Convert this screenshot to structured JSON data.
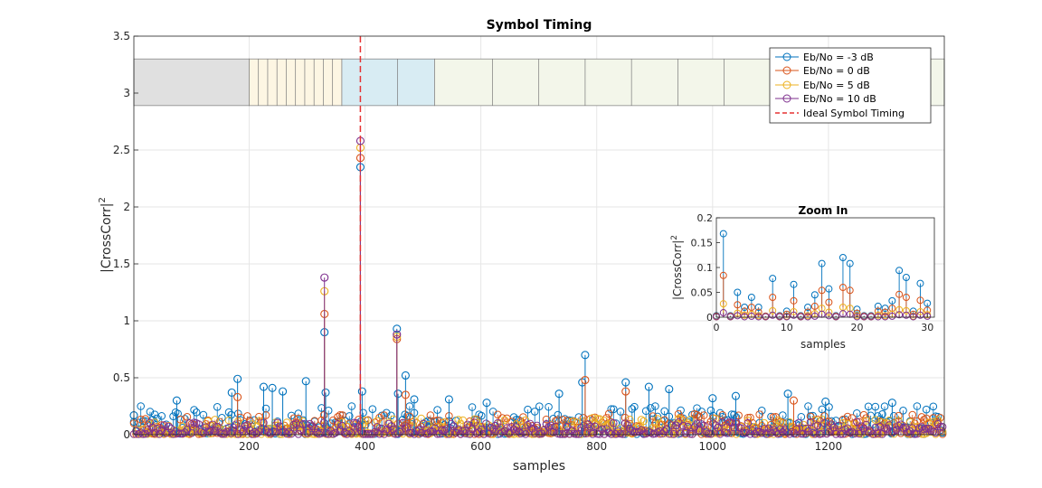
{
  "chart_data": [
    {
      "type": "stem",
      "title": "Symbol Timing",
      "xlabel": "samples",
      "ylabel": "|CrossCorr|",
      "ylabel_superscript": "2",
      "xlim": [
        1,
        1400
      ],
      "ylim": [
        0,
        3.5
      ],
      "xticks": [
        200,
        400,
        600,
        800,
        1000,
        1200
      ],
      "yticks": [
        0,
        0.5,
        1,
        1.5,
        2,
        2.5,
        3,
        3.5
      ],
      "ytick_labels": [
        "0",
        "0.5",
        "1",
        "1.5",
        "2",
        "2.5",
        "3",
        "3.5"
      ],
      "grid": true,
      "legend_position": "top-right",
      "colors": {
        "eb_m3": "#0072BD",
        "eb_0": "#D95319",
        "eb_5": "#EDB120",
        "eb_10": "#7E2F8E",
        "ideal": "#E63232"
      },
      "series": [
        {
          "name": "Eb/No = -3 dB",
          "peaks": [
            {
              "x": 1,
              "y": 0.17
            },
            {
              "x": 75,
              "y": 0.3
            },
            {
              "x": 170,
              "y": 0.37
            },
            {
              "x": 180,
              "y": 0.49
            },
            {
              "x": 225,
              "y": 0.42
            },
            {
              "x": 240,
              "y": 0.41
            },
            {
              "x": 258,
              "y": 0.38
            },
            {
              "x": 298,
              "y": 0.47
            },
            {
              "x": 330,
              "y": 0.9
            },
            {
              "x": 332,
              "y": 0.37
            },
            {
              "x": 392,
              "y": 2.35
            },
            {
              "x": 395,
              "y": 0.38
            },
            {
              "x": 455,
              "y": 0.93
            },
            {
              "x": 457,
              "y": 0.36
            },
            {
              "x": 470,
              "y": 0.52
            },
            {
              "x": 485,
              "y": 0.31
            },
            {
              "x": 545,
              "y": 0.31
            },
            {
              "x": 610,
              "y": 0.28
            },
            {
              "x": 735,
              "y": 0.36
            },
            {
              "x": 780,
              "y": 0.7
            },
            {
              "x": 775,
              "y": 0.46
            },
            {
              "x": 850,
              "y": 0.46
            },
            {
              "x": 890,
              "y": 0.42
            },
            {
              "x": 925,
              "y": 0.4
            },
            {
              "x": 1000,
              "y": 0.32
            },
            {
              "x": 1040,
              "y": 0.34
            },
            {
              "x": 1130,
              "y": 0.36
            },
            {
              "x": 1195,
              "y": 0.29
            },
            {
              "x": 1310,
              "y": 0.28
            }
          ]
        },
        {
          "name": "Eb/No = 0 dB",
          "peaks": [
            {
              "x": 330,
              "y": 1.06
            },
            {
              "x": 392,
              "y": 2.43
            },
            {
              "x": 455,
              "y": 0.84
            },
            {
              "x": 470,
              "y": 0.35
            },
            {
              "x": 180,
              "y": 0.33
            },
            {
              "x": 780,
              "y": 0.48
            },
            {
              "x": 850,
              "y": 0.38
            },
            {
              "x": 1140,
              "y": 0.3
            }
          ]
        },
        {
          "name": "Eb/No = 5 dB",
          "peaks": [
            {
              "x": 330,
              "y": 1.26
            },
            {
              "x": 392,
              "y": 2.52
            },
            {
              "x": 455,
              "y": 0.86
            }
          ]
        },
        {
          "name": "Eb/No = 10 dB",
          "peaks": [
            {
              "x": 330,
              "y": 1.38
            },
            {
              "x": 392,
              "y": 2.58
            },
            {
              "x": 455,
              "y": 0.88
            }
          ]
        }
      ],
      "ideal_symbol_timing": {
        "name": "Ideal Symbol Timing",
        "x": 392
      },
      "frame_segments": [
        {
          "x0": 1,
          "x1": 200,
          "color": "#e0e0e0",
          "dividers": []
        },
        {
          "x0": 200,
          "x1": 360,
          "color": "#fdf6e3",
          "dividers": [
            216,
            232,
            248,
            264,
            280,
            296,
            312,
            328,
            344
          ]
        },
        {
          "x0": 360,
          "x1": 520,
          "color": "#d8ecf3",
          "dividers": [
            456
          ]
        },
        {
          "x0": 520,
          "x1": 1400,
          "color": "#f3f6ea",
          "dividers": [
            620,
            700,
            780,
            860,
            940,
            1020,
            1100,
            1180,
            1260,
            1340
          ]
        }
      ],
      "frame_band": {
        "y0": 2.89,
        "y1": 3.3
      }
    },
    {
      "type": "stem",
      "title": "Zoom In",
      "xlabel": "samples",
      "ylabel": "|CrossCorr|",
      "ylabel_superscript": "2",
      "xlim": [
        0,
        31
      ],
      "ylim": [
        0,
        0.2
      ],
      "xticks": [
        0,
        10,
        20,
        30
      ],
      "yticks": [
        0,
        0.05,
        0.1,
        0.15,
        0.2
      ],
      "ytick_labels": [
        "0",
        "0.05",
        "0.1",
        "0.15",
        "0.2"
      ],
      "series": [
        {
          "name": "Eb/No = -3 dB",
          "values": [
            0.003,
            0.168,
            0.003,
            0.05,
            0.02,
            0.04,
            0.02,
            0.002,
            0.078,
            0.003,
            0.012,
            0.066,
            0.003,
            0.02,
            0.045,
            0.108,
            0.057,
            0.003,
            0.12,
            0.108,
            0.016,
            0.003,
            0.003,
            0.022,
            0.018,
            0.033,
            0.094,
            0.08,
            0.012,
            0.068,
            0.028
          ]
        },
        {
          "name": "Eb/No = 0 dB",
          "values": [
            0.002,
            0.084,
            0.002,
            0.025,
            0.012,
            0.02,
            0.01,
            0.002,
            0.04,
            0.002,
            0.006,
            0.033,
            0.002,
            0.01,
            0.022,
            0.054,
            0.03,
            0.002,
            0.06,
            0.054,
            0.008,
            0.002,
            0.002,
            0.012,
            0.01,
            0.018,
            0.046,
            0.04,
            0.006,
            0.034,
            0.014
          ]
        },
        {
          "name": "Eb/No = 5 dB",
          "values": [
            0.001,
            0.027,
            0.001,
            0.008,
            0.004,
            0.006,
            0.003,
            0.001,
            0.013,
            0.001,
            0.002,
            0.011,
            0.001,
            0.003,
            0.007,
            0.018,
            0.01,
            0.001,
            0.02,
            0.018,
            0.003,
            0.001,
            0.001,
            0.004,
            0.003,
            0.006,
            0.015,
            0.013,
            0.002,
            0.011,
            0.005
          ]
        },
        {
          "name": "Eb/No = 10 dB",
          "values": [
            0.001,
            0.009,
            0.001,
            0.003,
            0.001,
            0.002,
            0.001,
            0.001,
            0.004,
            0.001,
            0.001,
            0.004,
            0.001,
            0.001,
            0.002,
            0.006,
            0.003,
            0.001,
            0.007,
            0.006,
            0.001,
            0.001,
            0.001,
            0.001,
            0.001,
            0.002,
            0.005,
            0.004,
            0.001,
            0.004,
            0.002
          ]
        }
      ]
    }
  ]
}
